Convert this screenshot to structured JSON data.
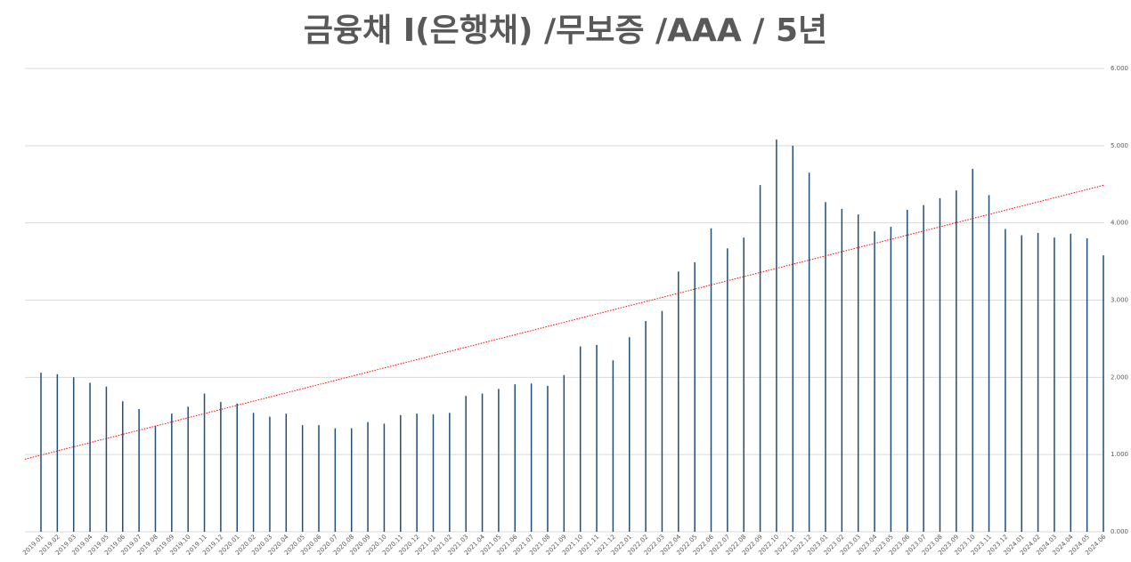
{
  "chart_data": {
    "type": "bar",
    "title": "금융채 I(은행채)  /무보증 /AAA / 5년",
    "categories": [
      "2019.01",
      "2019.02",
      "2019.03",
      "2019.04",
      "2019.05",
      "2019.06",
      "2019.07",
      "2019.08",
      "2019.09",
      "2019.10",
      "2019.11",
      "2019.12",
      "2020.01",
      "2020.02",
      "2020.03",
      "2020.04",
      "2020.05",
      "2020.06",
      "2020.07",
      "2020.08",
      "2020.09",
      "2020.10",
      "2020.11",
      "2020.12",
      "2021.01",
      "2021.02",
      "2021.03",
      "2021.04",
      "2021.05",
      "2021.06",
      "2021.07",
      "2021.08",
      "2021.09",
      "2021.10",
      "2021.11",
      "2021.12",
      "2022.01",
      "2022.02",
      "2022.03",
      "2022.04",
      "2022.05",
      "2022.06",
      "2022.07",
      "2022.08",
      "2022.09",
      "2022.10",
      "2022.11",
      "2022.12",
      "2023.01",
      "2023.02",
      "2023.03",
      "2023.04",
      "2023.05",
      "2023.06",
      "2023.07",
      "2023.08",
      "2023.09",
      "2023.10",
      "2023.11",
      "2023.12",
      "2024.01",
      "2024.02",
      "2024.03",
      "2024.04",
      "2024.05",
      "2024.06"
    ],
    "values": [
      2.06,
      2.04,
      2.0,
      1.93,
      1.88,
      1.69,
      1.59,
      1.37,
      1.53,
      1.62,
      1.79,
      1.68,
      1.66,
      1.54,
      1.49,
      1.53,
      1.38,
      1.38,
      1.34,
      1.34,
      1.42,
      1.4,
      1.51,
      1.53,
      1.52,
      1.54,
      1.76,
      1.79,
      1.85,
      1.91,
      1.92,
      1.89,
      2.03,
      2.4,
      2.42,
      2.22,
      2.52,
      2.73,
      2.86,
      3.37,
      3.49,
      3.93,
      3.67,
      3.81,
      4.49,
      5.08,
      5.0,
      4.65,
      4.27,
      4.18,
      4.11,
      3.89,
      3.95,
      4.17,
      4.23,
      4.32,
      4.42,
      4.7,
      4.36,
      3.92,
      3.84,
      3.87,
      3.81,
      3.86,
      3.8,
      3.58
    ],
    "color": "#1f4e79",
    "ylim": [
      0,
      6
    ],
    "yticks": [
      {
        "value": 0,
        "label": "0.000"
      },
      {
        "value": 1,
        "label": "1.000"
      },
      {
        "value": 2,
        "label": "2.000"
      },
      {
        "value": 3,
        "label": "3.000"
      },
      {
        "value": 4,
        "label": "4.000"
      },
      {
        "value": 5,
        "label": "5.000"
      },
      {
        "value": 6,
        "label": "6.000"
      }
    ],
    "grid": true,
    "trendline": true,
    "trendline_color": "#ff0000"
  }
}
